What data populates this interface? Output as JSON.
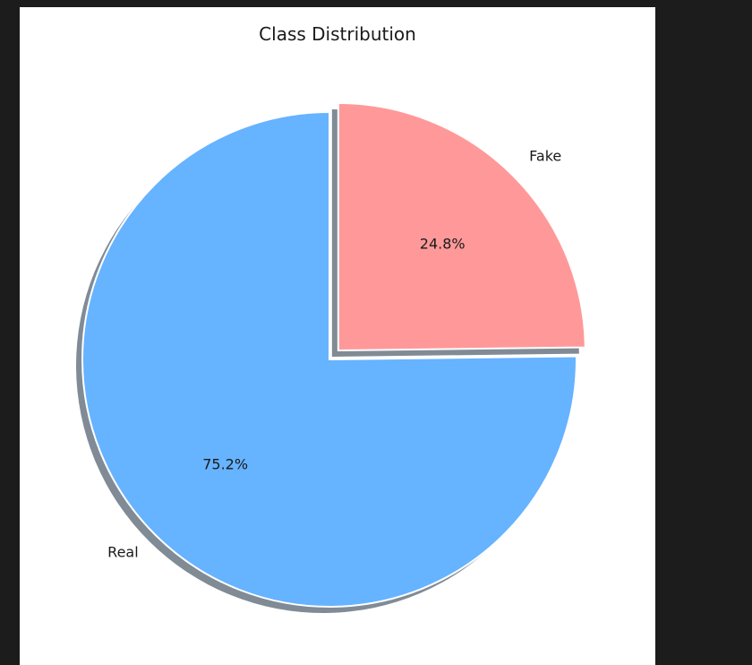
{
  "chart_data": {
    "type": "pie",
    "title": "Class Distribution",
    "slices": [
      {
        "label": "Real",
        "value": 75.2,
        "pct_label": "75.2%",
        "color": "#66b3ff",
        "explode": false
      },
      {
        "label": "Fake",
        "value": 24.8,
        "pct_label": "24.8%",
        "color": "#ff9999",
        "explode": true
      }
    ],
    "start_angle_deg": 90,
    "counterclock": true,
    "shadow": true
  },
  "colors": {
    "outer_background": "#1c1c1c",
    "figure_background": "#ffffff",
    "shadow": "#808b96"
  }
}
